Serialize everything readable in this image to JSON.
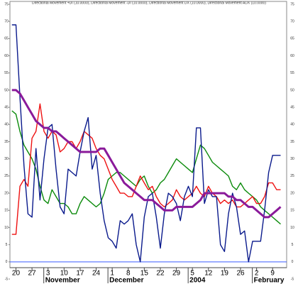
{
  "chart_data": {
    "type": "line",
    "title": "Directional Movement +DI (10.0000), Directional Movement -DI (10.0000), Directional Movement DX (10.0000), Directional Movement ADX (10.0000)",
    "xlim": [
      -0.5,
      68.5
    ],
    "xticks": [
      {
        "value": 1,
        "label": "20"
      },
      {
        "value": 5,
        "label": "27"
      },
      {
        "value": 9,
        "label": "3"
      },
      {
        "value": 13,
        "label": "10"
      },
      {
        "value": 17,
        "label": "17"
      },
      {
        "value": 21,
        "label": "24"
      },
      {
        "value": 25,
        "label": "1"
      },
      {
        "value": 29,
        "label": "8"
      },
      {
        "value": 33,
        "label": "15"
      },
      {
        "value": 37,
        "label": "22"
      },
      {
        "value": 41,
        "label": "29"
      },
      {
        "value": 45,
        "label": "5"
      },
      {
        "value": 49,
        "label": "12"
      },
      {
        "value": 53,
        "label": "19"
      },
      {
        "value": 57,
        "label": "26"
      },
      {
        "value": 61,
        "label": "2"
      },
      {
        "value": 65,
        "label": "9"
      }
    ],
    "period_labels": [
      {
        "value": 9,
        "label": "November"
      },
      {
        "value": 25,
        "label": "December"
      },
      {
        "value": 45,
        "label": "2004"
      },
      {
        "value": 61,
        "label": "February"
      }
    ],
    "ylim": [
      -5,
      75
    ],
    "yticks": [
      75,
      70,
      65,
      60,
      55,
      50,
      45,
      40,
      35,
      30,
      25,
      20,
      15,
      10,
      5,
      0,
      -5
    ],
    "zero_line_color": "#3a5cff",
    "series": [
      {
        "name": "+DI",
        "color": "#0a8a0a",
        "values": [
          44,
          43,
          38,
          34,
          32,
          30,
          27,
          22,
          18,
          17,
          21,
          19,
          17,
          17,
          16,
          14,
          14,
          17,
          19,
          18,
          17,
          16,
          17,
          20,
          24,
          25,
          26,
          26,
          25,
          24,
          23,
          22,
          24,
          25,
          22,
          20,
          21,
          23,
          24,
          26,
          28,
          30,
          29,
          28,
          27,
          26,
          30,
          34,
          33,
          31,
          29,
          28,
          27,
          26,
          25,
          22,
          21,
          23,
          21,
          20,
          19,
          18,
          16,
          15,
          14,
          13,
          12,
          11
        ]
      },
      {
        "name": "-DI",
        "color": "#ee1111",
        "values": [
          8,
          8,
          22,
          24,
          22,
          36,
          38,
          46,
          38,
          36,
          38,
          37,
          32,
          33,
          35,
          35,
          33,
          35,
          38,
          37,
          36,
          33,
          31,
          30,
          27,
          24,
          22,
          20,
          20,
          19,
          19,
          22,
          25,
          23,
          21,
          22,
          19,
          17,
          16,
          17,
          18,
          21,
          19,
          18,
          19,
          20,
          22,
          20,
          19,
          22,
          20,
          19,
          17,
          18,
          17,
          18,
          16,
          16,
          17,
          18,
          19,
          17,
          17,
          19,
          23,
          23,
          21,
          21
        ]
      },
      {
        "name": "DX",
        "color": "#0a1a8c",
        "values": [
          69,
          69,
          48,
          28,
          14,
          13,
          33,
          18,
          30,
          39,
          40,
          27,
          16,
          14,
          27,
          26,
          25,
          32,
          38,
          42,
          27,
          31,
          20,
          12,
          7,
          6,
          4,
          12,
          11,
          12,
          14,
          5,
          0,
          13,
          19,
          20,
          13,
          4,
          14,
          20,
          19,
          17,
          12,
          19,
          22,
          19,
          39,
          39,
          17,
          21,
          19,
          19,
          5,
          3,
          14,
          20,
          16,
          8,
          9,
          0,
          6,
          6,
          6,
          15,
          26,
          31,
          31,
          31
        ]
      },
      {
        "name": "ADX",
        "color": "#8a1a9a",
        "values": [
          50,
          50,
          49,
          47,
          45,
          43,
          41,
          40,
          39,
          39,
          38,
          38,
          37,
          36,
          35,
          34,
          33,
          32,
          32,
          32,
          32,
          32,
          33,
          33,
          31,
          29,
          27,
          25,
          23,
          22,
          21,
          20,
          19,
          18,
          18,
          18,
          17,
          16,
          15,
          15,
          15,
          16,
          16,
          16,
          16,
          16,
          17,
          18,
          20,
          20,
          20,
          20,
          20,
          20,
          19,
          19,
          18,
          18,
          17,
          16,
          16,
          15,
          14,
          13,
          13,
          14,
          15,
          16
        ]
      }
    ]
  }
}
